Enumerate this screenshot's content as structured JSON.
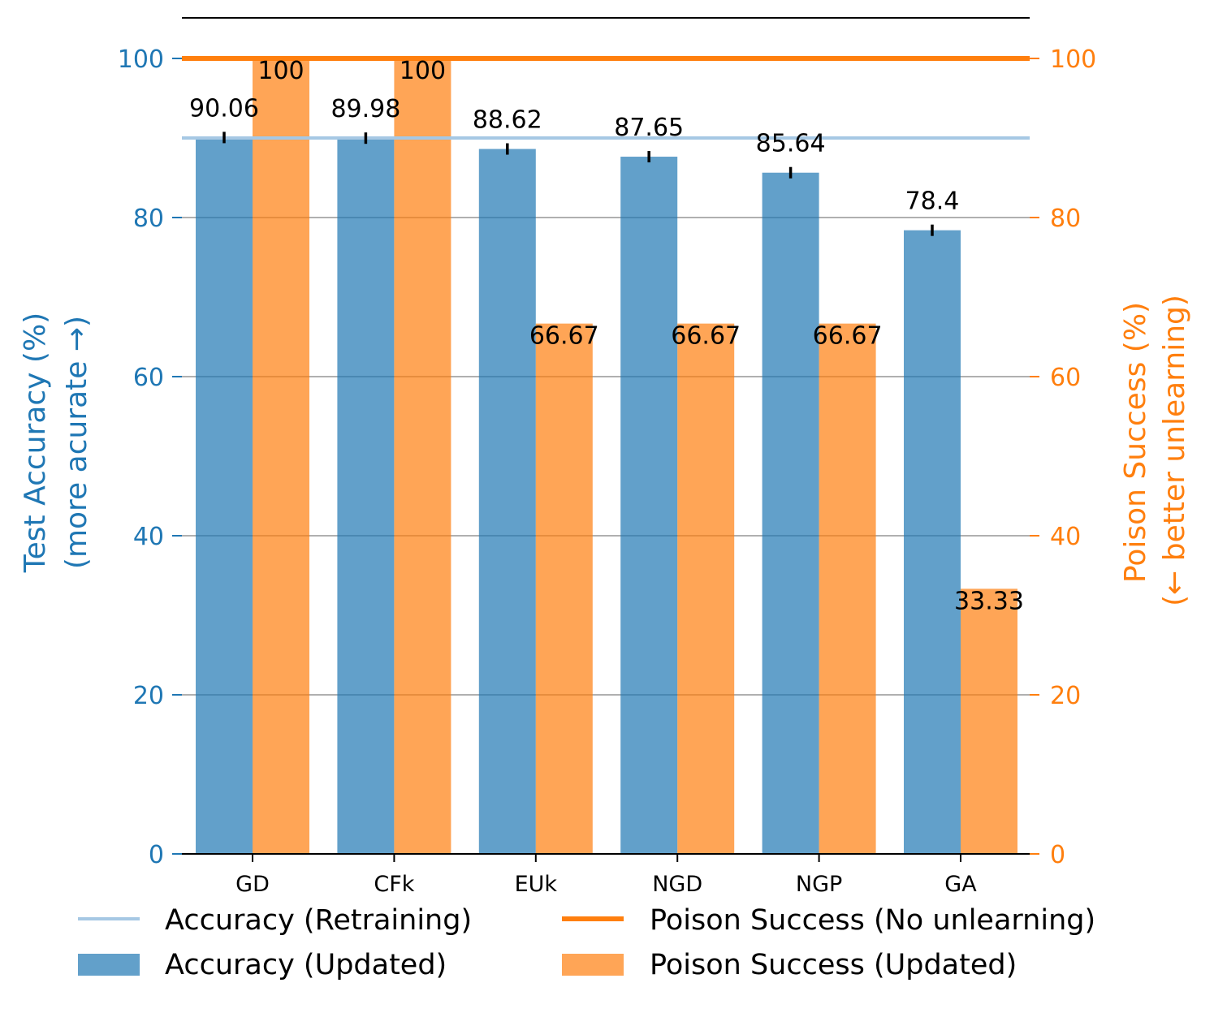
{
  "chart_data": {
    "type": "bar",
    "categories": [
      "GD",
      "CFk",
      "EUk",
      "NGD",
      "NGP",
      "GA"
    ],
    "series": [
      {
        "name": "Accuracy (Updated)",
        "axis": "left",
        "color": "#1f77b4",
        "values": [
          90.06,
          89.98,
          88.62,
          87.65,
          85.64,
          78.4
        ],
        "labels": [
          "90.06",
          "89.98",
          "88.62",
          "87.65",
          "85.64",
          "78.4"
        ]
      },
      {
        "name": "Poison Success (Updated)",
        "axis": "right",
        "color": "#ff7f0e",
        "values": [
          100,
          100,
          66.67,
          66.67,
          66.67,
          33.33
        ],
        "labels": [
          "100",
          "100",
          "66.67",
          "66.67",
          "66.67",
          "33.33"
        ]
      }
    ],
    "reference_lines": [
      {
        "name": "Accuracy (Retraining)",
        "axis": "left",
        "value": 90.0,
        "color": "#a6c8e4"
      },
      {
        "name": "Poison Success (No unlearning)",
        "axis": "right",
        "value": 100,
        "color": "#ff7f0e"
      }
    ],
    "left_axis": {
      "label_line1": "Test Accuracy (%)",
      "label_line2": "(more acurate →)",
      "ylim": [
        0,
        100
      ],
      "ticks": [
        0,
        20,
        40,
        60,
        80,
        100
      ],
      "color": "#1f77b4"
    },
    "right_axis": {
      "label_line1": "Poison Success (%)",
      "label_line2": "(← better unlearning)",
      "ylim": [
        0,
        100
      ],
      "ticks": [
        0,
        20,
        40,
        60,
        80,
        100
      ],
      "color": "#ff7f0e"
    },
    "grid": true,
    "legend": {
      "placement": "bottom",
      "entries": [
        "Accuracy (Retraining)",
        "Poison Success (No unlearning)",
        "Accuracy (Updated)",
        "Poison Success (Updated)"
      ]
    }
  }
}
